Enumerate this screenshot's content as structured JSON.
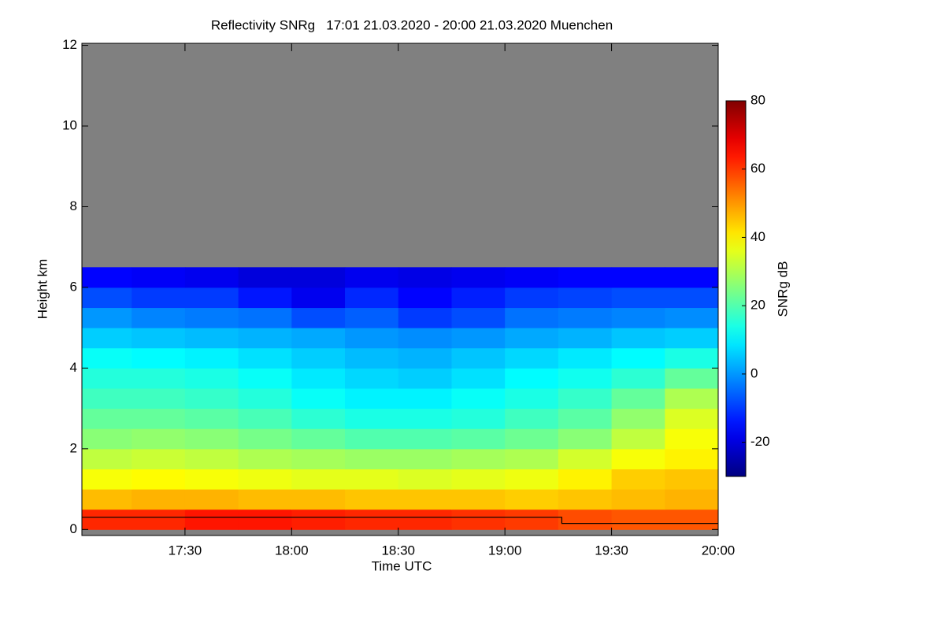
{
  "chart_data": {
    "type": "heatmap",
    "title": "Reflectivity SNRg   17:01 21.03.2020 - 20:00 21.03.2020 Muenchen",
    "x_label": "Time UTC",
    "y_label": "Height km",
    "colorbar_label": "SNRg dB",
    "x": [
      1021,
      1035,
      1050,
      1065,
      1080,
      1095,
      1110,
      1125,
      1140,
      1155,
      1170,
      1185
    ],
    "y": [
      0,
      0.5,
      1,
      1.5,
      2,
      2.5,
      3,
      3.5,
      4,
      4.5,
      5,
      5.5,
      6
    ],
    "z": [
      [
        62,
        62,
        64,
        64,
        63,
        62,
        62,
        61,
        60,
        58,
        57,
        57
      ],
      [
        46,
        47,
        47,
        46,
        46,
        45,
        45,
        45,
        44,
        45,
        46,
        47
      ],
      [
        38,
        39,
        38,
        37,
        36,
        36,
        35,
        36,
        37,
        40,
        44,
        45
      ],
      [
        32,
        33,
        32,
        30,
        29,
        28,
        28,
        29,
        30,
        34,
        38,
        40
      ],
      [
        26,
        27,
        26,
        24,
        22,
        20,
        20,
        21,
        23,
        26,
        32,
        38
      ],
      [
        22,
        22,
        21,
        19,
        16,
        14,
        14,
        15,
        18,
        21,
        27,
        35
      ],
      [
        18,
        18,
        17,
        15,
        12,
        10,
        10,
        12,
        14,
        17,
        22,
        30
      ],
      [
        15,
        15,
        14,
        12,
        9,
        7,
        6,
        8,
        11,
        13,
        16,
        22
      ],
      [
        12,
        11,
        10,
        8,
        6,
        4,
        3,
        5,
        7,
        9,
        11,
        14
      ],
      [
        6,
        5,
        4,
        3,
        2,
        0,
        -1,
        0,
        2,
        3,
        5,
        6
      ],
      [
        0,
        -2,
        -3,
        -4,
        -8,
        -6,
        -10,
        -8,
        -4,
        -3,
        -2,
        -1
      ],
      [
        -8,
        -10,
        -10,
        -14,
        -18,
        -12,
        -16,
        -13,
        -10,
        -9,
        -8,
        -8
      ],
      [
        -16,
        -17,
        -18,
        -20,
        -20,
        -18,
        -19,
        -18,
        -17,
        -16,
        -16,
        -16
      ]
    ],
    "boundary": {
      "x": [
        1021,
        1156,
        1156,
        1200
      ],
      "values": [
        0.3,
        0.3,
        0.15,
        0.15
      ],
      "color": "#000000"
    },
    "xlim": [
      1021,
      1200
    ],
    "xticks": [
      {
        "value": 1050,
        "label": "17:30"
      },
      {
        "value": 1080,
        "label": "18:00"
      },
      {
        "value": 1110,
        "label": "18:30"
      },
      {
        "value": 1140,
        "label": "19:00"
      },
      {
        "value": 1170,
        "label": "19:30"
      },
      {
        "value": 1200,
        "label": "20:00"
      }
    ],
    "ylim": [
      -0.15,
      12.05
    ],
    "yticks": [
      0,
      2,
      4,
      6,
      8,
      10,
      12
    ],
    "clim": [
      -30,
      80
    ],
    "cticks": [
      -20,
      0,
      20,
      40,
      60,
      80
    ],
    "colormap": "jet",
    "missing_color": "#808080"
  }
}
